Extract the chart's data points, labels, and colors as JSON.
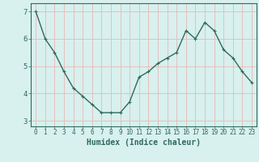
{
  "x": [
    0,
    1,
    2,
    3,
    4,
    5,
    6,
    7,
    8,
    9,
    10,
    11,
    12,
    13,
    14,
    15,
    16,
    17,
    18,
    19,
    20,
    21,
    22,
    23
  ],
  "y": [
    7.0,
    6.0,
    5.5,
    4.8,
    4.2,
    3.9,
    3.6,
    3.3,
    3.3,
    3.3,
    3.7,
    4.6,
    4.8,
    5.1,
    5.3,
    5.5,
    6.3,
    6.0,
    6.6,
    6.3,
    5.6,
    5.3,
    4.8,
    4.4
  ],
  "xlabel": "Humidex (Indice chaleur)",
  "line_color": "#2e6b5e",
  "marker": "+",
  "bg_color": "#d8f0ee",
  "grid_color": "#e8b8b8",
  "axis_color": "#2e6b5e",
  "ylim": [
    2.8,
    7.3
  ],
  "xlim": [
    -0.5,
    23.5
  ],
  "yticks": [
    3,
    4,
    5,
    6,
    7
  ],
  "xticks": [
    0,
    1,
    2,
    3,
    4,
    5,
    6,
    7,
    8,
    9,
    10,
    11,
    12,
    13,
    14,
    15,
    16,
    17,
    18,
    19,
    20,
    21,
    22,
    23
  ],
  "xtick_labels": [
    "0",
    "1",
    "2",
    "3",
    "4",
    "5",
    "6",
    "7",
    "8",
    "9",
    "10",
    "11",
    "12",
    "13",
    "14",
    "15",
    "16",
    "17",
    "18",
    "19",
    "20",
    "21",
    "22",
    "23"
  ],
  "xlabel_fontsize": 7,
  "tick_fontsize": 5.5,
  "linewidth": 1.0,
  "markersize": 3.5
}
